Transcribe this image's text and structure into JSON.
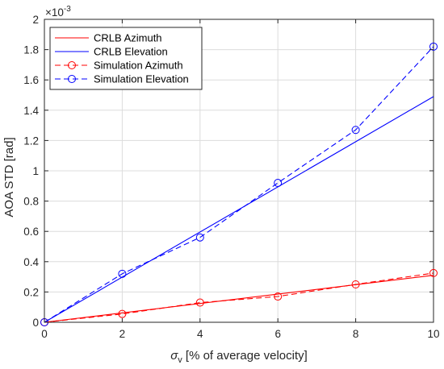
{
  "chart_data": {
    "type": "line",
    "xlabel_symbol": "σ",
    "xlabel_subscript": "v",
    "xlabel_rest": " [% of average velocity]",
    "ylabel": "AOA STD [rad]",
    "y_exponent_base": "×10",
    "y_exponent_power": "-3",
    "xlim": [
      0,
      10
    ],
    "ylim": [
      0,
      2
    ],
    "xticks": [
      0,
      2,
      4,
      6,
      8,
      10
    ],
    "yticks": [
      0,
      0.2,
      0.4,
      0.6,
      0.8,
      1,
      1.2,
      1.4,
      1.6,
      1.8,
      2
    ],
    "xtick_labels": [
      "0",
      "2",
      "4",
      "6",
      "8",
      "10"
    ],
    "ytick_labels": [
      "0",
      "0.2",
      "0.4",
      "0.6",
      "0.8",
      "1",
      "1.2",
      "1.4",
      "1.6",
      "1.8",
      "2"
    ],
    "y_scale_note": "values in units of 1e-3 rad",
    "grid": true,
    "legend_position": "top-left",
    "series": [
      {
        "name": "CRLB Azimuth",
        "color": "#ff0000",
        "style": "solid",
        "marker": "none",
        "x": [
          0,
          10
        ],
        "y": [
          0,
          0.31
        ]
      },
      {
        "name": "CRLB Elevation",
        "color": "#0000ff",
        "style": "solid",
        "marker": "none",
        "x": [
          0,
          10
        ],
        "y": [
          0,
          1.49
        ]
      },
      {
        "name": "Simulation Azimuth",
        "color": "#ff0000",
        "style": "dashed",
        "marker": "circle",
        "x": [
          0,
          2,
          4,
          6,
          8,
          10
        ],
        "y": [
          0,
          0.055,
          0.13,
          0.17,
          0.25,
          0.325
        ]
      },
      {
        "name": "Simulation Elevation",
        "color": "#0000ff",
        "style": "dashed",
        "marker": "circle",
        "x": [
          0,
          2,
          4,
          6,
          8,
          10
        ],
        "y": [
          0,
          0.32,
          0.56,
          0.92,
          1.27,
          1.82
        ]
      }
    ]
  }
}
